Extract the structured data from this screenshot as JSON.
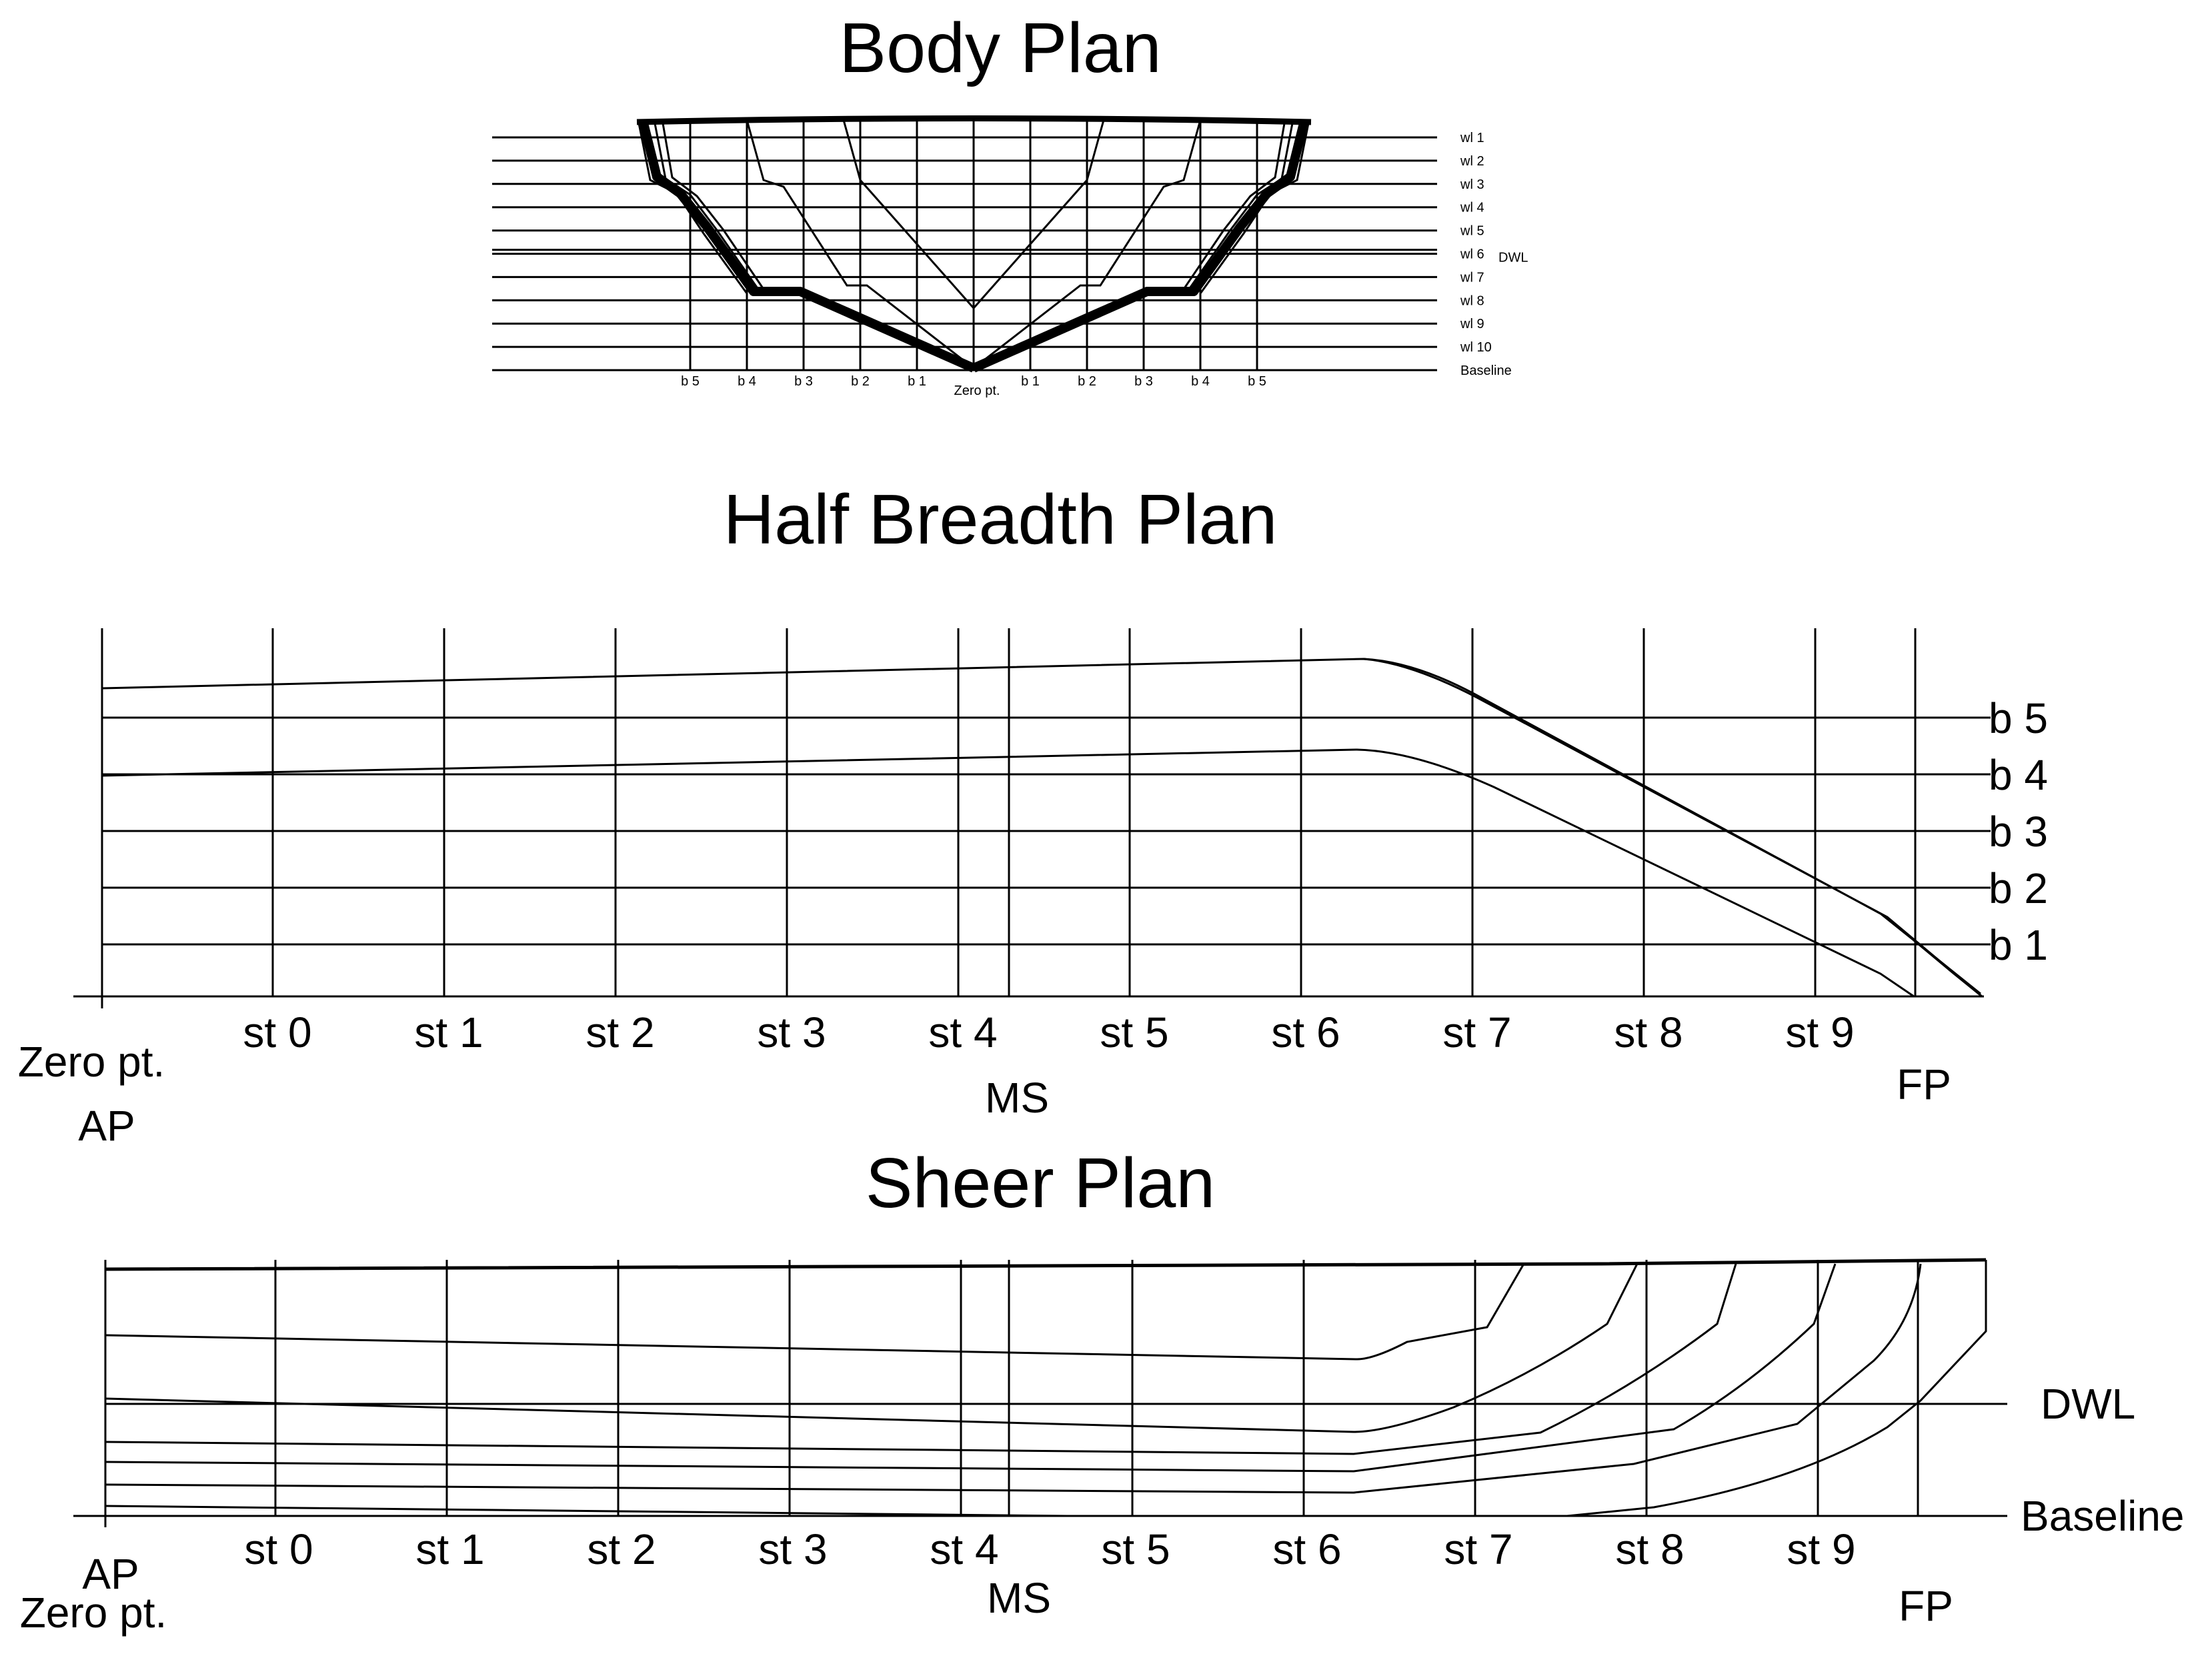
{
  "body_plan": {
    "title": "Body Plan",
    "waterlines": [
      "wl 1",
      "wl 2",
      "wl 3",
      "wl 4",
      "wl 5",
      "wl 6",
      "wl 7",
      "wl 8",
      "wl 9",
      "wl 10"
    ],
    "dwl_label": "DWL",
    "baseline_label": "Baseline",
    "buttocks_left": [
      "b 5",
      "b 4",
      "b 3",
      "b 2",
      "b 1"
    ],
    "buttocks_right": [
      "b 1",
      "b 2",
      "b 3",
      "b 4",
      "b 5"
    ],
    "zero_label": "Zero pt."
  },
  "half_breadth_plan": {
    "title": "Half Breadth Plan",
    "buttocks": [
      "b 5",
      "b 4",
      "b 3",
      "b 2",
      "b 1"
    ],
    "stations": [
      "st 0",
      "st 1",
      "st 2",
      "st 3",
      "st 4",
      "st 5",
      "st 6",
      "st 7",
      "st 8",
      "st 9"
    ],
    "zero_label": "Zero pt.",
    "ap_label": "AP",
    "ms_label": "MS",
    "fp_label": "FP"
  },
  "sheer_plan": {
    "title": "Sheer Plan",
    "dwl_label": "DWL",
    "baseline_label": "Baseline",
    "stations": [
      "st 0",
      "st 1",
      "st 2",
      "st 3",
      "st 4",
      "st 5",
      "st 6",
      "st 7",
      "st 8",
      "st 9"
    ],
    "ap_label": "AP",
    "zero_label": "Zero pt.",
    "ms_label": "MS",
    "fp_label": "FP"
  }
}
